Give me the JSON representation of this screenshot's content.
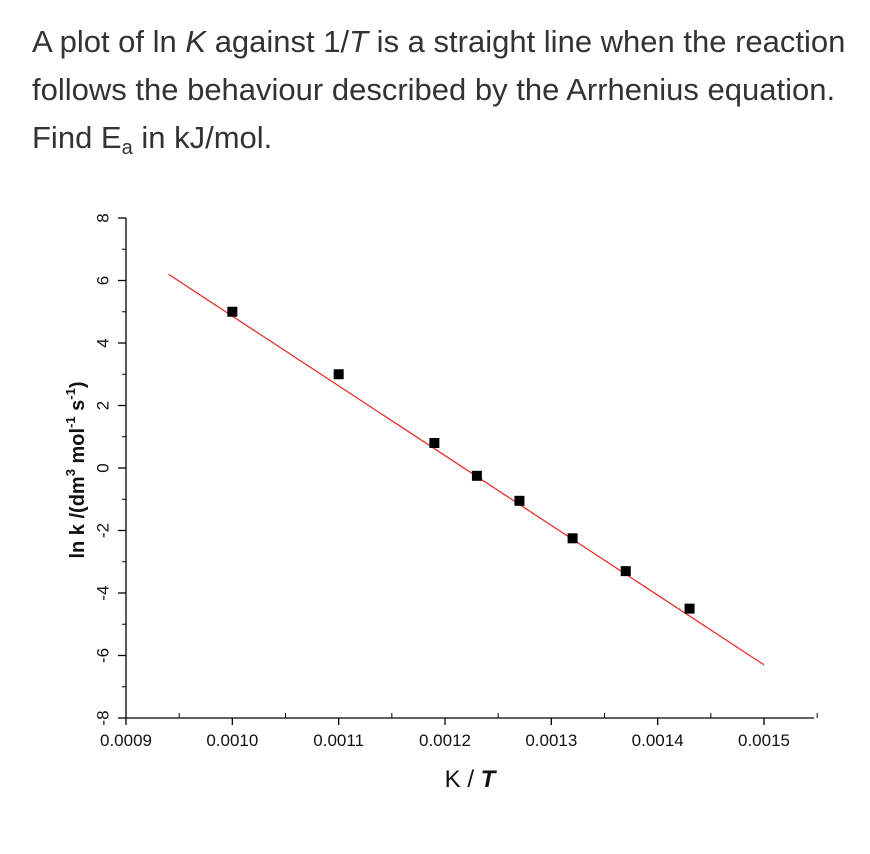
{
  "question": {
    "part1": "A plot of ln ",
    "k_symbol": "K",
    "part2": " against 1/",
    "t_symbol": "T",
    "part3": " is a straight line when the reaction follows the behaviour described by the Arrhenius equation. Find E",
    "subscript": "a",
    "part4": " in kJ/mol."
  },
  "chart_data": {
    "type": "scatter",
    "title": "",
    "xlabel_main": "K / ",
    "xlabel_emph": "T",
    "ylabel_main": "ln k /(dm",
    "ylabel_sup1": "3",
    "ylabel_mid1": " mol",
    "ylabel_sup2": "-1",
    "ylabel_mid2": " s",
    "ylabel_sup3": "-1",
    "ylabel_end": ")",
    "xlim": [
      0.0009,
      0.0015
    ],
    "ylim": [
      -8,
      8
    ],
    "xticks": [
      "0.0009",
      "0.0010",
      "0.0011",
      "0.0012",
      "0.0013",
      "0.0014",
      "0.0015"
    ],
    "yticks": [
      "-8",
      "-6",
      "-4",
      "-2",
      "0",
      "2",
      "4",
      "6",
      "8"
    ],
    "grid": false,
    "series": [
      {
        "marker": "square",
        "color": "#000000",
        "x": [
          0.001,
          0.0011,
          0.00119,
          0.00123,
          0.00127,
          0.00132,
          0.00137,
          0.00143
        ],
        "y": [
          5.0,
          3.0,
          0.8,
          -0.25,
          -1.05,
          -2.25,
          -3.3,
          -4.5
        ]
      }
    ],
    "fit_line": {
      "color": "#e8231e",
      "x": [
        0.00094,
        0.0015
      ],
      "y": [
        6.2,
        -6.3
      ]
    }
  }
}
